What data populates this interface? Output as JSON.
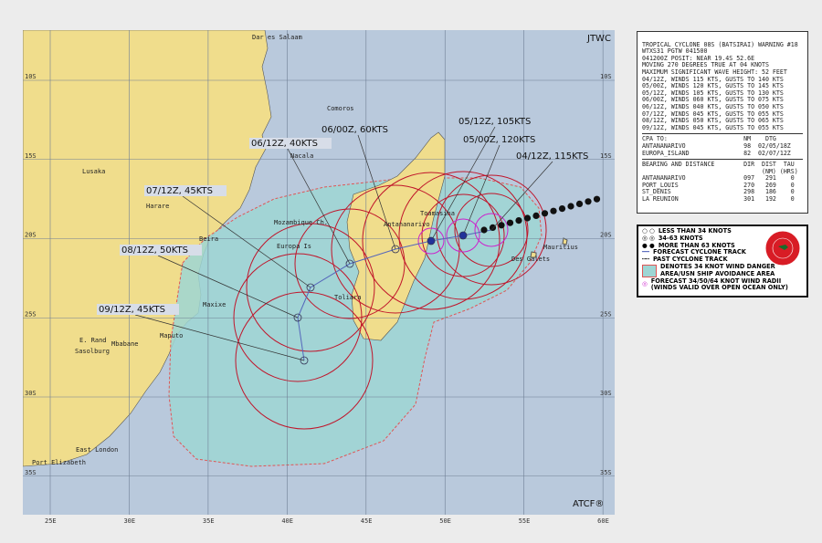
{
  "header": {
    "agency": "JTWC",
    "credit": "ATCF®"
  },
  "warning": {
    "lines": [
      "TROPICAL CYCLONE 08S (BATSIRAI) WARNING #18",
      "WTXS31 PGTW 041500",
      "041200Z POSIT: NEAR 19.4S 52.6E",
      "MOVING 270 DEGREES TRUE AT 04 KNOTS",
      "MAXIMUM SIGNIFICANT WAVE HEIGHT: 52 FEET",
      "04/12Z, WINDS 115 KTS, GUSTS TO 140 KTS",
      "05/00Z, WINDS 120 KTS, GUSTS TO 145 KTS",
      "05/12Z, WINDS 105 KTS, GUSTS TO 130 KTS",
      "06/00Z, WINDS 060 KTS, GUSTS TO 075 KTS",
      "06/12Z, WINDS 040 KTS, GUSTS TO 050 KTS",
      "07/12Z, WINDS 045 KTS, GUSTS TO 055 KTS",
      "08/12Z, WINDS 050 KTS, GUSTS TO 065 KTS",
      "09/12Z, WINDS 045 KTS, GUSTS TO 055 KTS"
    ],
    "cpa_lines": [
      "CPA TO:                     NM    DTG",
      "ANTANANARIVO                98  02/05/18Z",
      "EUROPA_ISLAND               82  02/07/12Z"
    ],
    "bearing_lines": [
      "BEARING AND DISTANCE        DIR  DIST  TAU",
      "                                 (NM) (HRS)",
      "ANTANANARIVO                097   291    0",
      "PORT_LOUIS                  270   269    0",
      "ST_DENIS                    298   186    0",
      "LA REUNION                  301   192    0"
    ]
  },
  "legend": [
    "LESS THAN 34 KNOTS",
    "34-63 KNOTS",
    "MORE THAN 63 KNOTS",
    "FORECAST CYCLONE TRACK",
    "PAST CYCLONE TRACK",
    "DENOTES 34 KNOT WIND DANGER",
    "AREA/USN SHIP AVOIDANCE AREA",
    "FORECAST 34/50/64 KNOT WIND RADII",
    "(WINDS VALID OVER OPEN OCEAN ONLY)"
  ],
  "colors": {
    "ocean": "#b9c9dc",
    "land": "#f0dd8c",
    "danger": "#9ed6d4",
    "radii": "#c0142a",
    "track": "#5566bb",
    "inner_radii": "#cc22cc"
  },
  "forecast_labels": [
    "04/12Z, 115KTS",
    "05/00Z, 120KTS",
    "05/12Z, 105KTS",
    "06/00Z, 60KTS",
    "06/12Z, 40KTS",
    "07/12Z, 45KTS",
    "08/12Z, 50KTS",
    "09/12Z, 45KTS"
  ],
  "places": [
    "Dar es Salaam",
    "Comoros",
    "Nacala",
    "Lusaka",
    "Harare",
    "Mozambique Ch.",
    "Beira",
    "Europa Is",
    "Toliara",
    "Antananarivo",
    "Toamasina",
    "Des Galets",
    "Mauritius",
    "Maxixe",
    "Maputo",
    "Mbabane",
    "E. Rand",
    "Sasolburg",
    "East London",
    "Port Elizabeth"
  ],
  "lon_ticks": [
    "25E",
    "30E",
    "35E",
    "40E",
    "45E",
    "50E",
    "55E",
    "60E"
  ],
  "lat_ticks": [
    "10S",
    "15S",
    "20S",
    "25S",
    "30S",
    "35S"
  ]
}
